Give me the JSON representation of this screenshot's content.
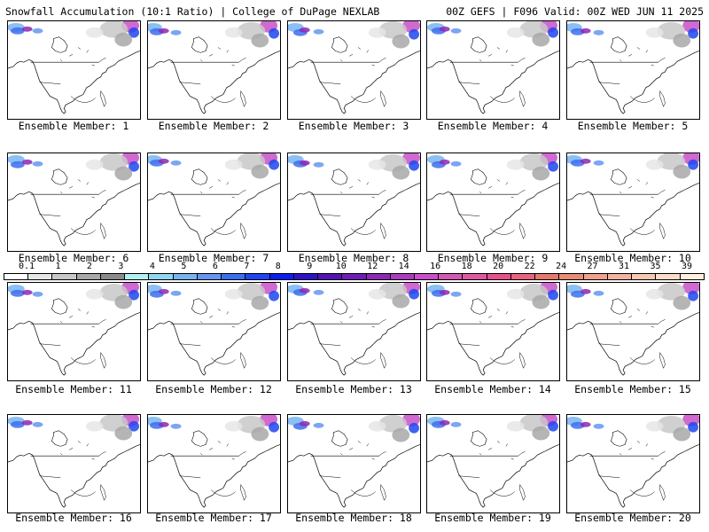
{
  "header": {
    "left": "Snowfall Accumulation (10:1 Ratio) | College of DuPage NEXLAB",
    "right": "00Z GEFS | F096 Valid: 00Z WED JUN 11 2025"
  },
  "panel_label_prefix": "Ensemble Member: ",
  "members": [
    "Ensemble Member: 1",
    "Ensemble Member: 2",
    "Ensemble Member: 3",
    "Ensemble Member: 4",
    "Ensemble Member: 5",
    "Ensemble Member: 6",
    "Ensemble Member: 7",
    "Ensemble Member: 8",
    "Ensemble Member: 9",
    "Ensemble Member: 10",
    "Ensemble Member: 11",
    "Ensemble Member: 12",
    "Ensemble Member: 13",
    "Ensemble Member: 14",
    "Ensemble Member: 15",
    "Ensemble Member: 16",
    "Ensemble Member: 17",
    "Ensemble Member: 18",
    "Ensemble Member: 19",
    "Ensemble Member: 20"
  ],
  "colorbar": {
    "labels": [
      "0.1",
      "1",
      "2",
      "3",
      "4",
      "5",
      "6",
      "7",
      "8",
      "9",
      "10",
      "12",
      "14",
      "16",
      "18",
      "20",
      "22",
      "24",
      "27",
      "31",
      "35",
      "39"
    ],
    "colors": [
      "#ffffff",
      "#e6e6e6",
      "#c8c8c8",
      "#a8a8a8",
      "#8a8a8a",
      "#b4f0f0",
      "#90d8f0",
      "#78b4f0",
      "#6496f0",
      "#3c6ef0",
      "#1e46f0",
      "#0a1ef0",
      "#2d14c8",
      "#5014b4",
      "#6e1eb4",
      "#8c28b4",
      "#aa3cbe",
      "#c850c8",
      "#d25ab4",
      "#dc5aa0",
      "#e6508c",
      "#e6647d",
      "#e6786e",
      "#e68c78",
      "#f0a08c",
      "#f0b4a0",
      "#f5c8b4",
      "#fadcc8",
      "#fff0e1"
    ]
  }
}
